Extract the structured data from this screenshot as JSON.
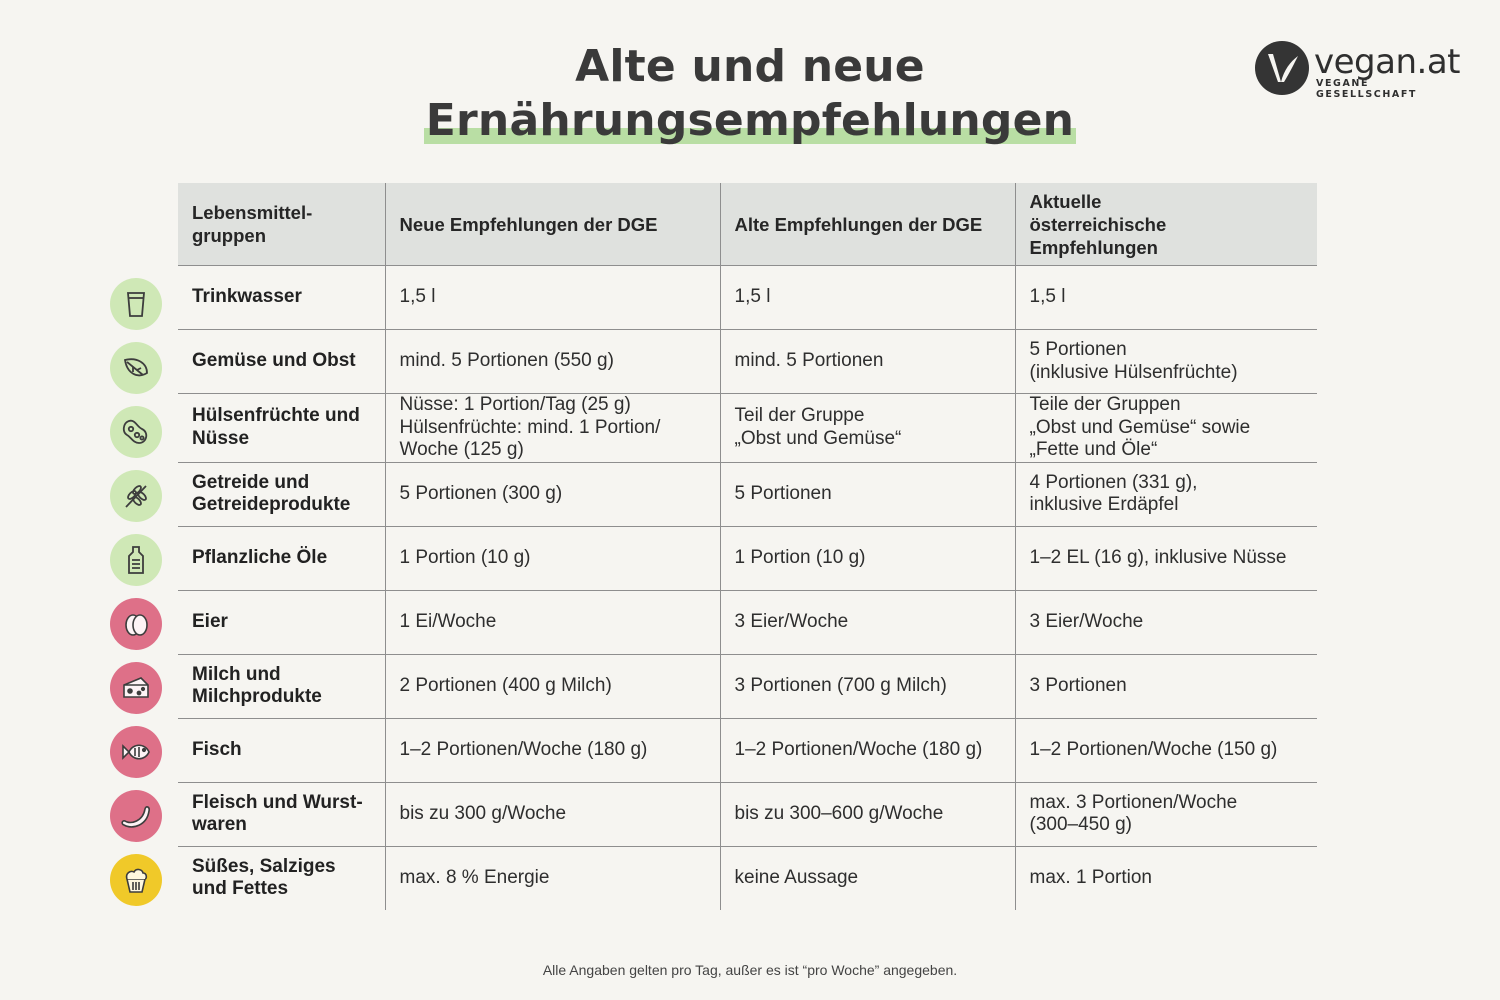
{
  "title": {
    "line1": "Alte und neue",
    "line2": "Ernährungsempfehlungen"
  },
  "logo": {
    "name": "vegan.at",
    "tagline": "VEGANE GESELLSCHAFT"
  },
  "colors": {
    "background": "#f6f5f1",
    "header_bg": "#dfe1de",
    "highlight": "#b9dea4",
    "icon_green": "#cfe8b6",
    "icon_red": "#de7088",
    "icon_yellow": "#f0c929"
  },
  "table": {
    "headers": [
      "Lebensmittel-\ngruppen",
      "Neue Empfehlungen der DGE",
      "Alte Empfehlungen der DGE",
      "Aktuelle\nösterreichische\nEmpfehlungen"
    ],
    "rows": [
      {
        "icon": "water-glass-icon",
        "group": "Trinkwasser",
        "new_dge": "1,5 l",
        "old_dge": "1,5 l",
        "austria": "1,5 l"
      },
      {
        "icon": "leaf-icon",
        "group": "Gemüse und Obst",
        "new_dge": "mind. 5 Portionen (550 g)",
        "old_dge": "mind. 5 Portionen",
        "austria": "5 Portionen\n(inklusive Hülsenfrüchte)"
      },
      {
        "icon": "legume-icon",
        "group": "Hülsenfrüchte und\nNüsse",
        "new_dge": "Nüsse: 1 Portion/Tag (25 g)\nHülsenfrüchte: mind. 1 Portion/\nWoche (125 g)",
        "old_dge": "Teil der Gruppe\n„Obst und Gemüse“",
        "austria": "Teile der Gruppen\n„Obst und Gemüse“ sowie\n„Fette und Öle“"
      },
      {
        "icon": "wheat-icon",
        "group": "Getreide und\nGetreideprodukte",
        "new_dge": "5 Portionen (300 g)",
        "old_dge": "5 Portionen",
        "austria": "4 Portionen (331 g),\ninklusive Erdäpfel"
      },
      {
        "icon": "oil-bottle-icon",
        "group": "Pflanzliche Öle",
        "new_dge": "1 Portion (10 g)",
        "old_dge": "1 Portion (10 g)",
        "austria": "1–2 EL (16 g), inklusive Nüsse"
      },
      {
        "icon": "egg-icon",
        "group": "Eier",
        "new_dge": "1 Ei/Woche",
        "old_dge": "3 Eier/Woche",
        "austria": "3 Eier/Woche"
      },
      {
        "icon": "cheese-icon",
        "group": "Milch und\nMilchprodukte",
        "new_dge": "2 Portionen (400 g Milch)",
        "old_dge": "3 Portionen (700 g Milch)",
        "austria": "3 Portionen"
      },
      {
        "icon": "fish-icon",
        "group": "Fisch",
        "new_dge": "1–2 Portionen/Woche (180 g)",
        "old_dge": "1–2 Portionen/Woche (180 g)",
        "austria": "1–2 Portionen/Woche (150 g)"
      },
      {
        "icon": "sausage-icon",
        "group": "Fleisch und Wurst-\nwaren",
        "new_dge": "bis zu 300 g/Woche",
        "old_dge": "bis zu 300–600 g/Woche",
        "austria": "max. 3 Portionen/Woche\n(300–450 g)"
      },
      {
        "icon": "cupcake-icon",
        "group": "Süßes, Salziges\nund Fettes",
        "new_dge": "max. 8 % Energie",
        "old_dge": "keine Aussage",
        "austria": "max. 1 Portion"
      }
    ]
  },
  "footnote": "Alle Angaben gelten pro Tag, außer es ist “pro Woche” angegeben."
}
